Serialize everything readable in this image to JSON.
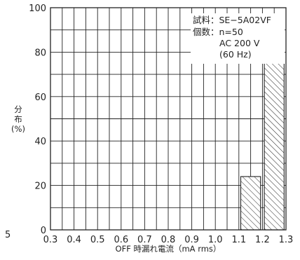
{
  "chart_data": {
    "type": "bar",
    "bins": [
      {
        "range": [
          1.1,
          1.2
        ],
        "value": 24
      },
      {
        "range": [
          1.2,
          1.3
        ],
        "value": 76
      }
    ],
    "xlim": [
      0.3,
      1.3
    ],
    "ylim": [
      0,
      100
    ],
    "x_ticks": [
      "0.3",
      "0.4",
      "0.5",
      "0.6",
      "0.7",
      "0.8",
      "0.9",
      "1.0",
      "1.1",
      "1.2",
      "1.3"
    ],
    "y_ticks": [
      "0",
      "20",
      "40",
      "60",
      "80",
      "100"
    ],
    "edge_label": "5",
    "xlabel": "OFF 時漏れ電流（mA rms）",
    "ylabel": [
      "分",
      "布",
      "(%)"
    ],
    "grid": true,
    "notes": [
      "試料：SE−5A02VF",
      "個数：n=50",
      "AC 200 V",
      "(60 Hz)"
    ]
  }
}
